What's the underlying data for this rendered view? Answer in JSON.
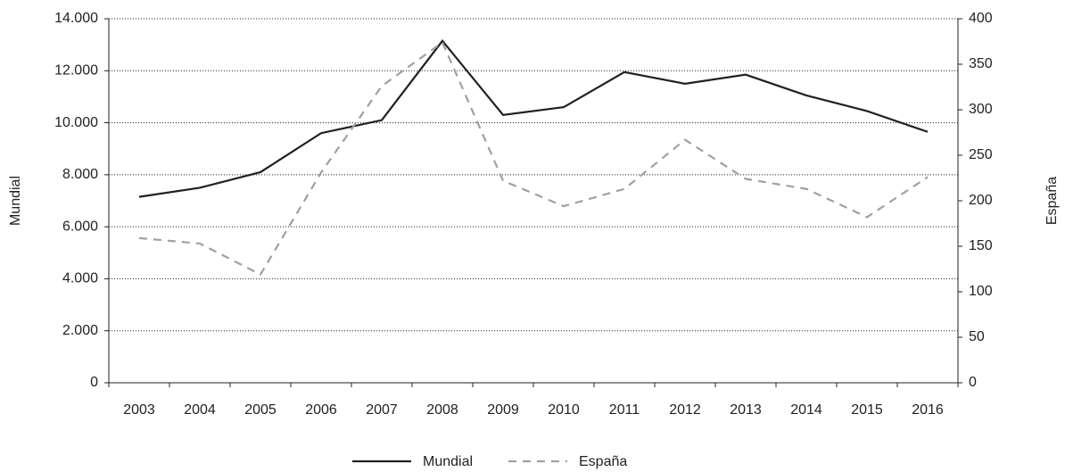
{
  "chart_data": {
    "type": "line",
    "y_label": "Mundial",
    "y2_label": "España",
    "categories": [
      "2003",
      "2004",
      "2005",
      "2006",
      "2007",
      "2008",
      "2009",
      "2010",
      "2011",
      "2012",
      "2013",
      "2014",
      "2015",
      "2016"
    ],
    "series": [
      {
        "name": "Mundial",
        "color": "#231f20",
        "line_style": "solid",
        "values": [
          7150,
          7500,
          8100,
          9600,
          10100,
          13150,
          10300,
          10600,
          11950,
          11500,
          11850,
          11050,
          10450,
          9650
        ]
      },
      {
        "name": "España",
        "color": "#a0a0a0",
        "line_style": "dashed",
        "axis": "y2",
        "values": [
          159,
          153,
          119,
          231,
          326,
          374,
          222,
          194,
          213,
          267,
          224,
          213,
          182,
          226
        ]
      }
    ],
    "ylim": [
      0,
      14000
    ],
    "yticks": [
      0,
      {
        "value": 2000,
        "label": "2.000"
      },
      {
        "value": 4000,
        "label": "4.000"
      },
      {
        "value": 6000,
        "label": "6.000"
      },
      {
        "value": 8000,
        "label": "8.000"
      },
      {
        "value": 10000,
        "label": "10.000"
      },
      {
        "value": 12000,
        "label": "12.000"
      },
      {
        "value": 14000,
        "label": "14.000"
      }
    ],
    "y2lim": [
      0,
      400
    ],
    "y2ticks": [
      0,
      50,
      100,
      150,
      200,
      250,
      300,
      350,
      400
    ],
    "grid": true,
    "legend": "bottom"
  }
}
